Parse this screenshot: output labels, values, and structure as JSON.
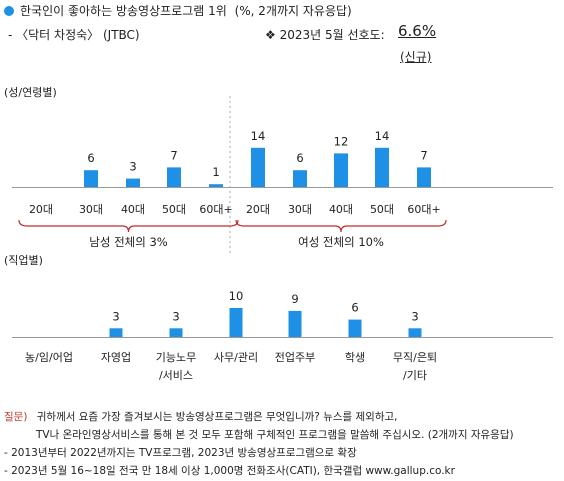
{
  "header": {
    "title": "한국인이 좋아하는 방송영상프로그램 1위",
    "title_note": "(%, 2개까지 자유응답)",
    "program": "- 〈닥터 차정숙〉 (JTBC)",
    "preference_label": "❖  2023년 5월 선호도:",
    "preference_value": "6.6%",
    "new_label": "(신규)"
  },
  "colors": {
    "bar": "#1e90e6",
    "bullet": "#1e90e6",
    "brace": "#c02a2a",
    "question": "#c0392b"
  },
  "chart_data": [
    {
      "type": "bar",
      "group_label": "(성/연령별)",
      "categories": [
        "20대",
        "30대",
        "40대",
        "50대",
        "60대+",
        "20대",
        "30대",
        "40대",
        "50대",
        "60대+"
      ],
      "values": [
        null,
        6,
        3,
        7,
        1,
        14,
        6,
        12,
        14,
        7
      ],
      "value_labels": [
        "",
        "6",
        "3",
        "7",
        "1",
        "14",
        "6",
        "12",
        "14",
        "7"
      ],
      "subgroups": [
        {
          "label": "남성 전체의 3%",
          "from": 0,
          "to": 4
        },
        {
          "label": "여성 전체의 10%",
          "from": 5,
          "to": 9
        }
      ]
    },
    {
      "type": "bar",
      "group_label": "(직업별)",
      "categories": [
        "농/임/어업",
        "자영업",
        "기능노무\n/서비스",
        "사무/관리",
        "전업주부",
        "학생",
        "무직/은퇴\n/기타"
      ],
      "values": [
        null,
        3,
        3,
        10,
        9,
        6,
        3
      ],
      "value_labels": [
        "",
        "3",
        "3",
        "10",
        "9",
        "6",
        "3"
      ]
    }
  ],
  "footnotes": {
    "question_label": "질문)",
    "question_line1": "귀하께서 요즘 가장 즐겨보시는 방송영상프로그램은 무엇입니까? 뉴스를 제외하고,",
    "question_line2": "TV나 온라인영상서비스를 통해 본 것 모두 포함해 구체적인 프로그램을 말씀해 주십시오. (2개까지 자유응답)",
    "note1": "- 2013년부터 2022년까지는 TV프로그램, 2023년 방송영상프로그램으로 확장",
    "note2": "- 2023년 5월 16~18일 전국 만 18세 이상 1,000명 전화조사(CATI), 한국갤럽 www.gallup.co.kr"
  }
}
